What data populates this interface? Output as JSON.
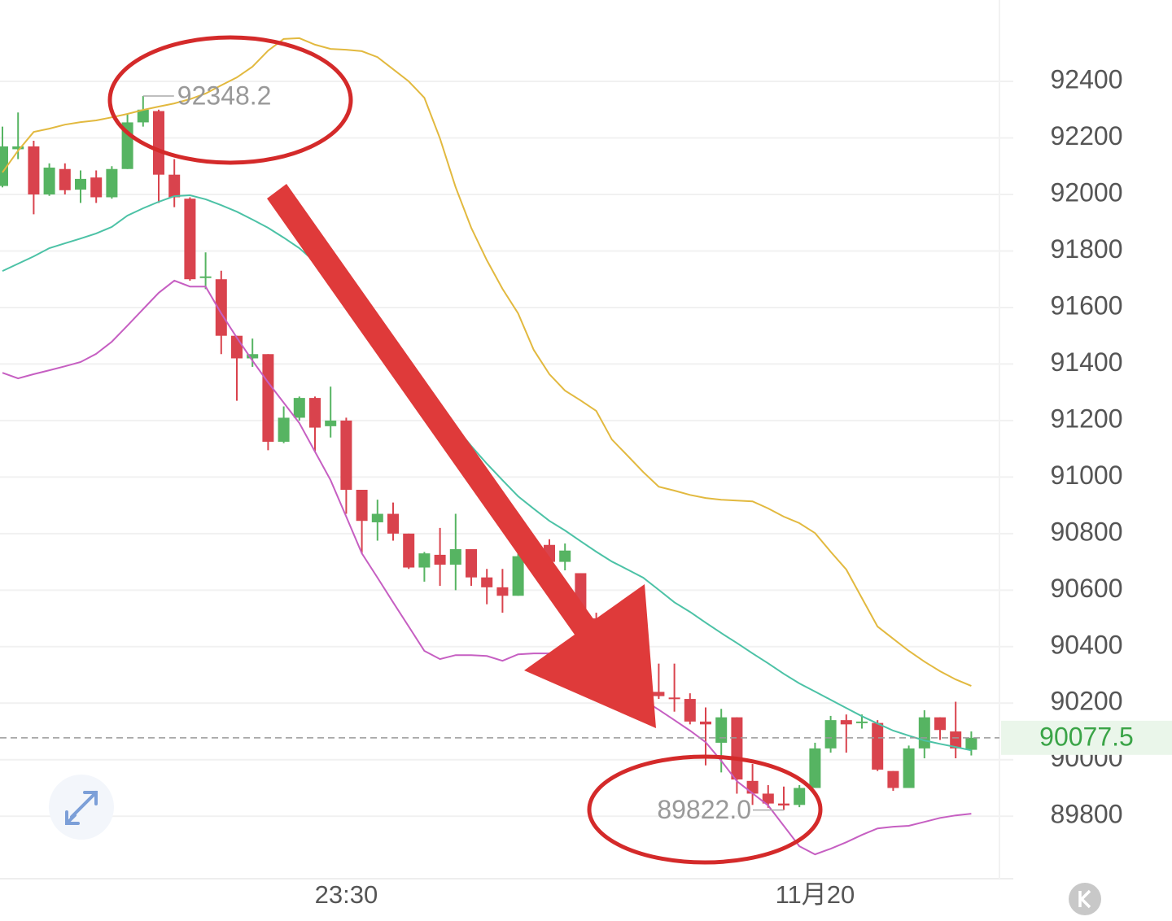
{
  "chart_data": {
    "type": "candlestick",
    "categories": [
      null,
      null,
      null,
      null,
      null,
      null,
      null,
      null,
      null,
      null,
      null,
      null,
      null,
      null,
      null,
      null,
      null,
      null,
      null,
      null,
      null,
      null,
      "23:30",
      null,
      null,
      null,
      null,
      null,
      null,
      null,
      null,
      null,
      null,
      null,
      null,
      null,
      null,
      null,
      null,
      null,
      null,
      null,
      null,
      null,
      null,
      null,
      null,
      null,
      null,
      null,
      null,
      null,
      "11月20",
      null,
      null,
      null,
      null,
      null,
      null,
      null,
      null,
      null,
      null
    ],
    "open": [
      92030,
      92160,
      92170,
      92000,
      92090,
      92017,
      92060,
      91990,
      92090,
      92255,
      92295,
      92070,
      91985,
      91705,
      91700,
      91500,
      91420,
      91435,
      91125,
      91210,
      91280,
      91180,
      91200,
      90955,
      90840,
      90870,
      90800,
      90680,
      90725,
      90690,
      90745,
      90645,
      90610,
      90580,
      90720,
      90760,
      90700,
      90660,
      90500,
      90420,
      90350,
      90380,
      90240,
      90220,
      90215,
      90135,
      90060,
      90150,
      89925,
      89880,
      89845,
      89840,
      89900,
      90040,
      90140,
      90130,
      90130,
      89960,
      89900,
      90040,
      90150,
      90100,
      90035
    ],
    "high": [
      92240,
      92290,
      92190,
      92110,
      92110,
      92085,
      92085,
      92100,
      92285,
      92348.2,
      92300,
      92125,
      91990,
      91795,
      91730,
      91500,
      91490,
      91435,
      91250,
      91285,
      91285,
      91320,
      91210,
      90955,
      90920,
      90910,
      90800,
      90735,
      90820,
      90870,
      90745,
      90675,
      90675,
      90730,
      90790,
      90780,
      90765,
      90660,
      90520,
      90440,
      90400,
      90390,
      90340,
      90340,
      90235,
      90185,
      90180,
      90150,
      89985,
      89910,
      89905,
      89910,
      90060,
      90155,
      90160,
      90160,
      90140,
      89960,
      90050,
      90175,
      90150,
      90205,
      90100
    ],
    "low": [
      92025,
      92125,
      91930,
      91995,
      92000,
      91970,
      91970,
      91985,
      92090,
      92240,
      91970,
      91955,
      91695,
      91665,
      91435,
      91270,
      91390,
      91095,
      91120,
      91200,
      91090,
      91140,
      90870,
      90730,
      90775,
      90775,
      90675,
      90630,
      90615,
      90600,
      90615,
      90550,
      90520,
      90580,
      90700,
      90680,
      90670,
      90480,
      90400,
      90330,
      90300,
      90240,
      90215,
      90170,
      90125,
      89980,
      89955,
      89880,
      89840,
      89830,
      89822,
      89832,
      89900,
      90025,
      90025,
      90110,
      89960,
      89890,
      89900,
      90005,
      90070,
      90005,
      90015
    ],
    "close": [
      92170,
      92170,
      92000,
      92095,
      92015,
      92055,
      91990,
      92090,
      92255,
      92300,
      92070,
      91990,
      91700,
      91710,
      91500,
      91420,
      91435,
      91125,
      91210,
      91280,
      91175,
      91200,
      90955,
      90845,
      90870,
      90800,
      90680,
      90730,
      90690,
      90745,
      90645,
      90610,
      90580,
      90720,
      90760,
      90700,
      90740,
      90500,
      90420,
      90350,
      90380,
      90260,
      90225,
      90215,
      90135,
      90125,
      90150,
      89930,
      89880,
      89845,
      89838,
      89900,
      90040,
      90140,
      90125,
      90135,
      89965,
      89900,
      90040,
      90150,
      90105,
      90040,
      90077.5
    ],
    "up_color": "#56b462",
    "down_color": "#d9434d",
    "overlays": [
      {
        "color": "#e2b93f",
        "values": [
          92078,
          92155,
          92221,
          92233,
          92247,
          92256,
          92262,
          92273,
          92285,
          92299,
          92311,
          92322,
          92337,
          92357,
          92386,
          92414,
          92452,
          92509,
          92550,
          92553,
          92530,
          92515,
          92512,
          92507,
          92486,
          92443,
          92400,
          92342,
          92198,
          92026,
          91882,
          91767,
          91666,
          91579,
          91450,
          91364,
          91306,
          91271,
          91234,
          91133,
          91076,
          91018,
          90966,
          90952,
          90937,
          90926,
          90920,
          90917,
          90914,
          90889,
          90860,
          90837,
          90802,
          90736,
          90673,
          90572,
          90471,
          90428,
          90385,
          90347,
          90313,
          90284,
          90261
        ]
      },
      {
        "color": "#4cc2a6",
        "values": [
          91729,
          91755,
          91781,
          91810,
          91827,
          91844,
          91862,
          91885,
          91925,
          91951,
          91974,
          91994,
          91997,
          91983,
          91962,
          91939,
          91911,
          91882,
          91847,
          91810,
          91761,
          91709,
          91652,
          91594,
          91536,
          91479,
          91407,
          91335,
          91257,
          91176,
          91110,
          91047,
          90989,
          90932,
          90888,
          90845,
          90811,
          90773,
          90736,
          90701,
          90673,
          90644,
          90601,
          90557,
          90523,
          90485,
          90448,
          90413,
          90376,
          90341,
          90304,
          90270,
          90241,
          90212,
          90183,
          90154,
          90128,
          90103,
          90085,
          90068,
          90056,
          90045,
          90033
        ]
      },
      {
        "color": "#c65fc2",
        "values": [
          91369,
          91349,
          91364,
          91378,
          91392,
          91407,
          91436,
          91479,
          91536,
          91594,
          91652,
          91695,
          91674,
          91674,
          91579,
          91493,
          91412,
          91335,
          91263,
          91191,
          91090,
          90989,
          90860,
          90730,
          90644,
          90557,
          90471,
          90385,
          90356,
          90370,
          90370,
          90367,
          90350,
          90373,
          90376,
          90376,
          90390,
          90362,
          90327,
          90284,
          90246,
          90212,
          90177,
          90140,
          90103,
          90062,
          89996,
          89924,
          89881,
          89838,
          89766,
          89694,
          89665,
          89685,
          89708,
          89734,
          89757,
          89763,
          89766,
          89780,
          89794,
          89803,
          89809
        ]
      }
    ],
    "ylim": [
      89579,
      92688
    ],
    "yticks": [
      89800,
      90000,
      90200,
      90400,
      90600,
      90800,
      91000,
      91200,
      91400,
      91600,
      91800,
      92000,
      92200,
      92400
    ],
    "grid": true,
    "max_annotation": {
      "value": 92348.2,
      "label": "92348.2"
    },
    "min_annotation": {
      "value": 89822,
      "label": "89822.0"
    },
    "last_price": {
      "value": 90077.5,
      "label": "90077.5"
    }
  }
}
